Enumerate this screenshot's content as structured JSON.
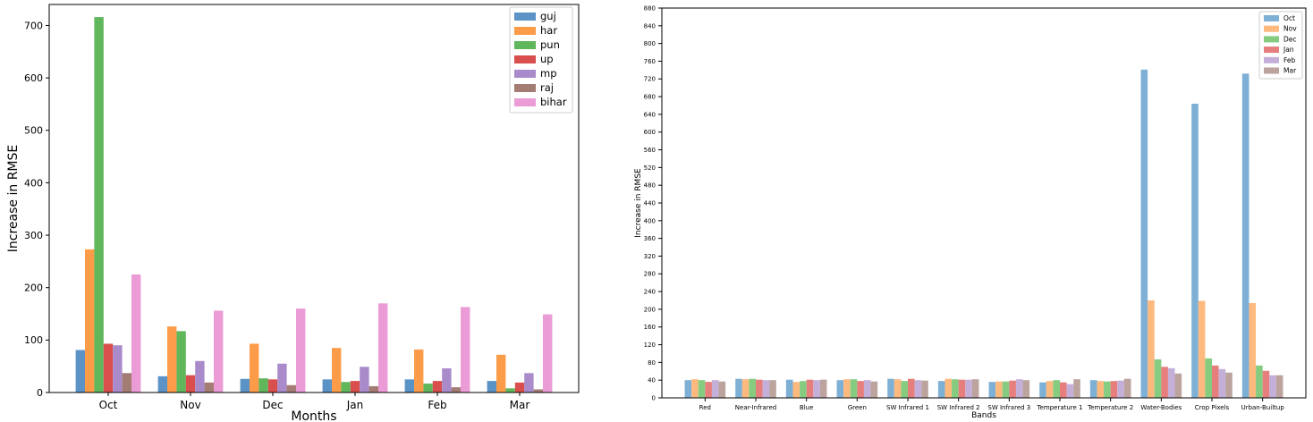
{
  "chart_data": [
    {
      "type": "bar",
      "xlabel": "Months",
      "ylabel": "Increase in RMSE",
      "ylim": [
        0,
        740
      ],
      "yticks": [
        0,
        100,
        200,
        300,
        400,
        500,
        600,
        700
      ],
      "categories": [
        "Oct",
        "Nov",
        "Dec",
        "Jan",
        "Feb",
        "Mar"
      ],
      "legend_position": "top-right",
      "series": [
        {
          "name": "guj",
          "color": "#5b93c6",
          "values": [
            81,
            31,
            26,
            25,
            25,
            22
          ]
        },
        {
          "name": "har",
          "color": "#fd9c48",
          "values": [
            273,
            126,
            93,
            85,
            82,
            72
          ]
        },
        {
          "name": "pun",
          "color": "#60b65b",
          "values": [
            716,
            117,
            27,
            20,
            17,
            8
          ]
        },
        {
          "name": "up",
          "color": "#d84f4d",
          "values": [
            93,
            33,
            25,
            22,
            22,
            19
          ]
        },
        {
          "name": "mp",
          "color": "#a98acb",
          "values": [
            90,
            60,
            55,
            49,
            46,
            37
          ]
        },
        {
          "name": "raj",
          "color": "#a37c73",
          "values": [
            37,
            19,
            14,
            12,
            10,
            6
          ]
        },
        {
          "name": "bihar",
          "color": "#eb9bd5",
          "values": [
            225,
            156,
            160,
            170,
            163,
            149
          ]
        }
      ]
    },
    {
      "type": "bar",
      "xlabel": "Bands",
      "ylabel": "Increase in RMSE",
      "ylim": [
        0,
        880
      ],
      "yticks": [
        0,
        40,
        80,
        120,
        160,
        200,
        240,
        280,
        320,
        360,
        400,
        440,
        480,
        520,
        560,
        600,
        640,
        680,
        720,
        760,
        800,
        840,
        880
      ],
      "categories": [
        "Red",
        "Near-Infrared",
        "Blue",
        "Green",
        "SW Infrared 1",
        "SW Infrared 2",
        "SW Infrared 3",
        "Temperature 1",
        "Temperature 2",
        "Water-Bodies",
        "Crop Pixels",
        "Urban-Builtup"
      ],
      "legend_position": "top-right",
      "series": [
        {
          "name": "Oct",
          "color": "#7eb0d5",
          "values": [
            40,
            43,
            41,
            40,
            43,
            38,
            36,
            35,
            40,
            741,
            664,
            732
          ]
        },
        {
          "name": "Nov",
          "color": "#fdb97e",
          "values": [
            42,
            42,
            36,
            42,
            42,
            43,
            37,
            38,
            38,
            220,
            219,
            214
          ]
        },
        {
          "name": "Dec",
          "color": "#85cc80",
          "values": [
            40,
            43,
            38,
            42,
            38,
            42,
            37,
            40,
            37,
            87,
            89,
            73
          ]
        },
        {
          "name": "Jan",
          "color": "#e57e7c",
          "values": [
            36,
            41,
            41,
            38,
            43,
            41,
            39,
            35,
            38,
            70,
            73,
            61
          ]
        },
        {
          "name": "Feb",
          "color": "#c4afd9",
          "values": [
            40,
            40,
            40,
            40,
            40,
            41,
            42,
            31,
            39,
            67,
            65,
            51
          ]
        },
        {
          "name": "Mar",
          "color": "#bca39d",
          "values": [
            37,
            40,
            41,
            37,
            39,
            42,
            40,
            42,
            43,
            55,
            57,
            51
          ]
        }
      ]
    }
  ]
}
